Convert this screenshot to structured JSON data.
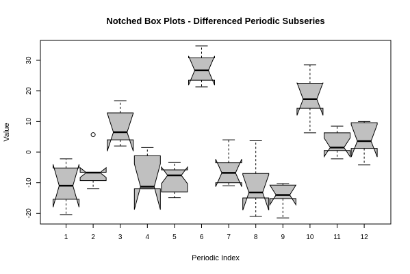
{
  "chart_data": {
    "type": "box",
    "subtype": "notched",
    "title": "Notched Box Plots - Differenced Periodic Subseries",
    "xlabel": "Periodic Index",
    "ylabel": "Value",
    "categories": [
      "1",
      "2",
      "3",
      "4",
      "5",
      "6",
      "7",
      "8",
      "9",
      "10",
      "11",
      "12"
    ],
    "ylim": [
      -23.5,
      36.5
    ],
    "yticks": [
      -20,
      -10,
      0,
      10,
      20,
      30
    ],
    "grid": false,
    "legend": "none",
    "box_fill": "#c0c0c0",
    "boxes": [
      {
        "category": "1",
        "whisker_low": -20.5,
        "q1": -15.4,
        "median": -11.0,
        "q3": -5.2,
        "whisker_high": -2.2,
        "notch_low": -18.0,
        "notch_high": -4.0,
        "outliers": []
      },
      {
        "category": "2",
        "whisker_low": -12.0,
        "q1": -9.3,
        "median": -6.7,
        "q3": -6.6,
        "whisker_high": -6.6,
        "notch_low": -8.3,
        "notch_high": -5.1,
        "outliers": [
          5.7
        ]
      },
      {
        "category": "3",
        "whisker_low": 2.0,
        "q1": 4.0,
        "median": 6.5,
        "q3": 12.8,
        "whisker_high": 16.8,
        "notch_low": 0.3,
        "notch_high": 12.7,
        "outliers": []
      },
      {
        "category": "4",
        "whisker_low": -12.0,
        "q1": -12.0,
        "median": -11.3,
        "q3": -1.2,
        "whisker_high": 1.5,
        "notch_low": -18.8,
        "notch_high": -3.8,
        "outliers": []
      },
      {
        "category": "5",
        "whisker_low": -14.9,
        "q1": -13.0,
        "median": -7.6,
        "q3": -5.8,
        "whisker_high": -3.4,
        "notch_low": -10.3,
        "notch_high": -4.9,
        "outliers": []
      },
      {
        "category": "6",
        "whisker_low": 21.3,
        "q1": 23.5,
        "median": 26.7,
        "q3": 30.8,
        "whisker_high": 34.7,
        "notch_low": 21.9,
        "notch_high": 31.4,
        "outliers": []
      },
      {
        "category": "7",
        "whisker_low": -11.0,
        "q1": -10.0,
        "median": -6.8,
        "q3": -3.5,
        "whisker_high": 4.0,
        "notch_low": -11.3,
        "notch_high": -2.3,
        "outliers": []
      },
      {
        "category": "8",
        "whisker_low": -21.0,
        "q1": -15.0,
        "median": -13.2,
        "q3": -7.0,
        "whisker_high": 3.7,
        "notch_low": -19.0,
        "notch_high": -7.4,
        "outliers": []
      },
      {
        "category": "9",
        "whisker_low": -21.5,
        "q1": -15.2,
        "median": -14.0,
        "q3": -10.8,
        "whisker_high": -10.3,
        "notch_low": -17.2,
        "notch_high": -10.8,
        "outliers": []
      },
      {
        "category": "10",
        "whisker_low": 6.3,
        "q1": 14.3,
        "median": 17.3,
        "q3": 22.5,
        "whisker_high": 28.5,
        "notch_low": 12.0,
        "notch_high": 22.7,
        "outliers": []
      },
      {
        "category": "11",
        "whisker_low": -2.2,
        "q1": 0.5,
        "median": 1.5,
        "q3": 6.3,
        "whisker_high": 8.5,
        "notch_low": -1.5,
        "notch_high": 4.6,
        "outliers": []
      },
      {
        "category": "12",
        "whisker_low": -4.2,
        "q1": 1.2,
        "median": 3.6,
        "q3": 9.6,
        "whisker_high": 10.0,
        "notch_low": -1.6,
        "notch_high": 9.0,
        "outliers": []
      }
    ]
  }
}
